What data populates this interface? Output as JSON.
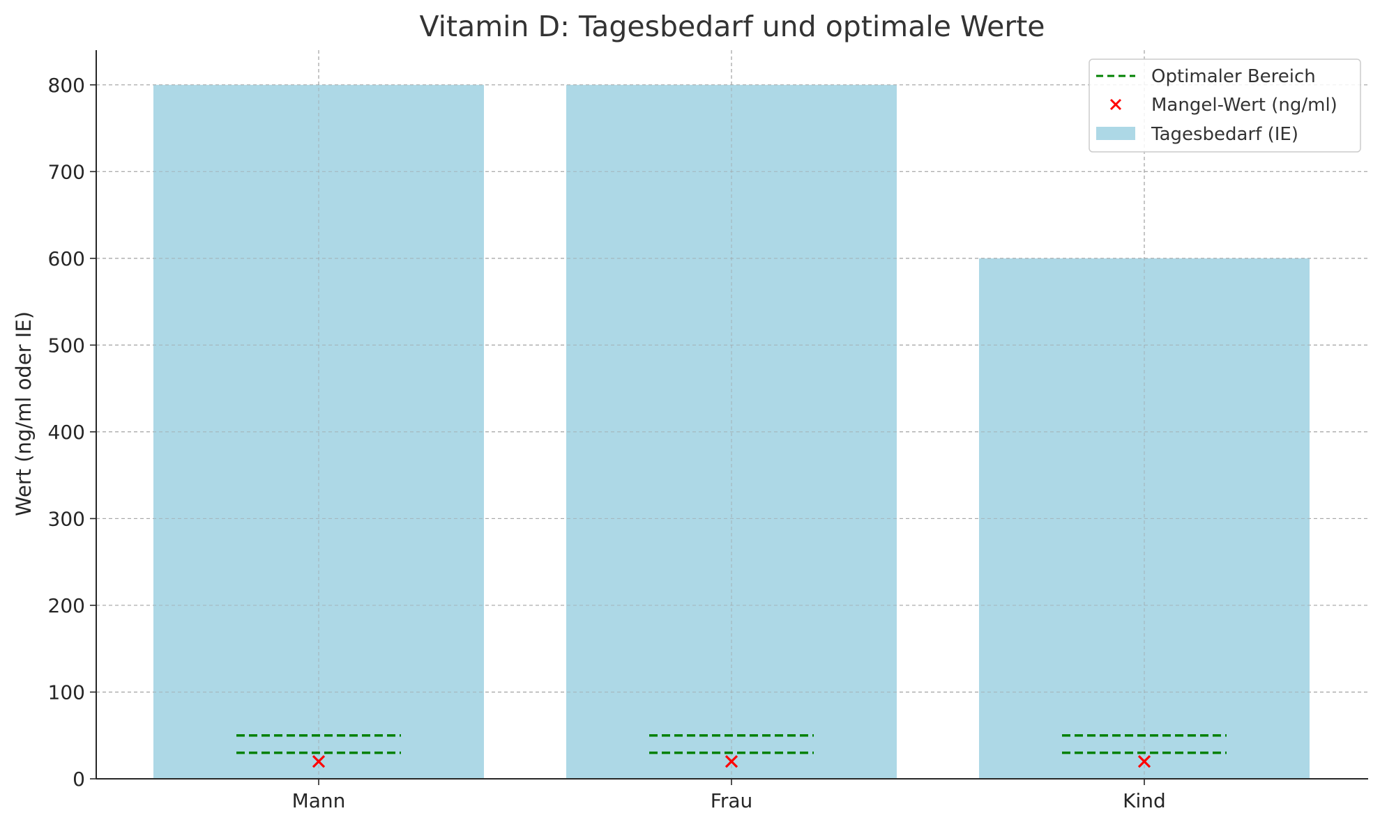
{
  "chart_data": {
    "type": "bar",
    "title": "Vitamin D: Tagesbedarf und optimale Werte",
    "xlabel": "",
    "ylabel": "Wert (ng/ml oder IE)",
    "categories": [
      "Mann",
      "Frau",
      "Kind"
    ],
    "ylim": [
      0,
      840
    ],
    "yticks": [
      0,
      100,
      200,
      300,
      400,
      500,
      600,
      700,
      800
    ],
    "grid": true,
    "legend_position": "top-right",
    "series": [
      {
        "name": "Tagesbedarf (IE)",
        "kind": "bar",
        "color": "#add8e6",
        "values": [
          800,
          800,
          600
        ]
      },
      {
        "name": "Mangel-Wert (ng/ml)",
        "kind": "marker-x",
        "color": "#ff0000",
        "values": [
          20,
          20,
          20
        ]
      },
      {
        "name": "Optimaler Bereich",
        "kind": "dashed-range",
        "color": "#008000",
        "ranges": [
          [
            30,
            50
          ],
          [
            30,
            50
          ],
          [
            30,
            50
          ]
        ]
      }
    ],
    "legend": [
      "Optimaler Bereich",
      "Mangel-Wert (ng/ml)",
      "Tagesbedarf (IE)"
    ]
  }
}
